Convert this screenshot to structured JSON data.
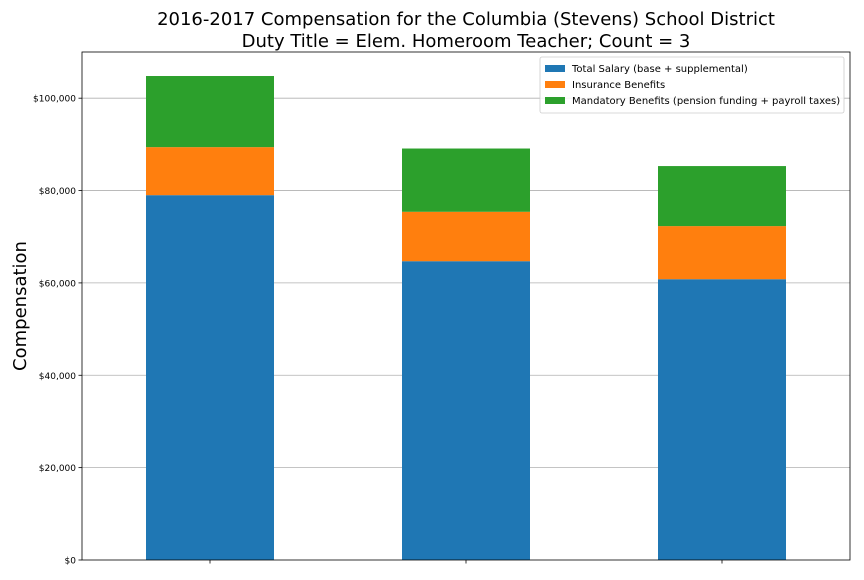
{
  "chart_data": {
    "type": "bar",
    "stacked": true,
    "title": "2016-2017 Compensation for the Columbia (Stevens) School District",
    "subtitle": "Duty Title = Elem. Homeroom Teacher; Count = 3",
    "xlabel": "",
    "ylabel": "Compensation",
    "categories": [
      "",
      "",
      ""
    ],
    "series": [
      {
        "name": "Total Salary (base + supplemental)",
        "color": "#1f77b4",
        "values": [
          79000,
          64700,
          60800
        ]
      },
      {
        "name": "Insurance Benefits",
        "color": "#ff7f0e",
        "values": [
          10400,
          10700,
          11500
        ]
      },
      {
        "name": "Mandatory Benefits (pension funding + payroll taxes)",
        "color": "#2ca02c",
        "values": [
          15400,
          13700,
          13000
        ]
      }
    ],
    "ylim": [
      0,
      110000
    ],
    "yticks": [
      0,
      20000,
      40000,
      60000,
      80000,
      100000
    ],
    "ytick_labels": [
      "$0",
      "$20,000",
      "$40,000",
      "$60,000",
      "$80,000",
      "$100,000"
    ],
    "grid": "y",
    "legend_position": "top-right"
  }
}
